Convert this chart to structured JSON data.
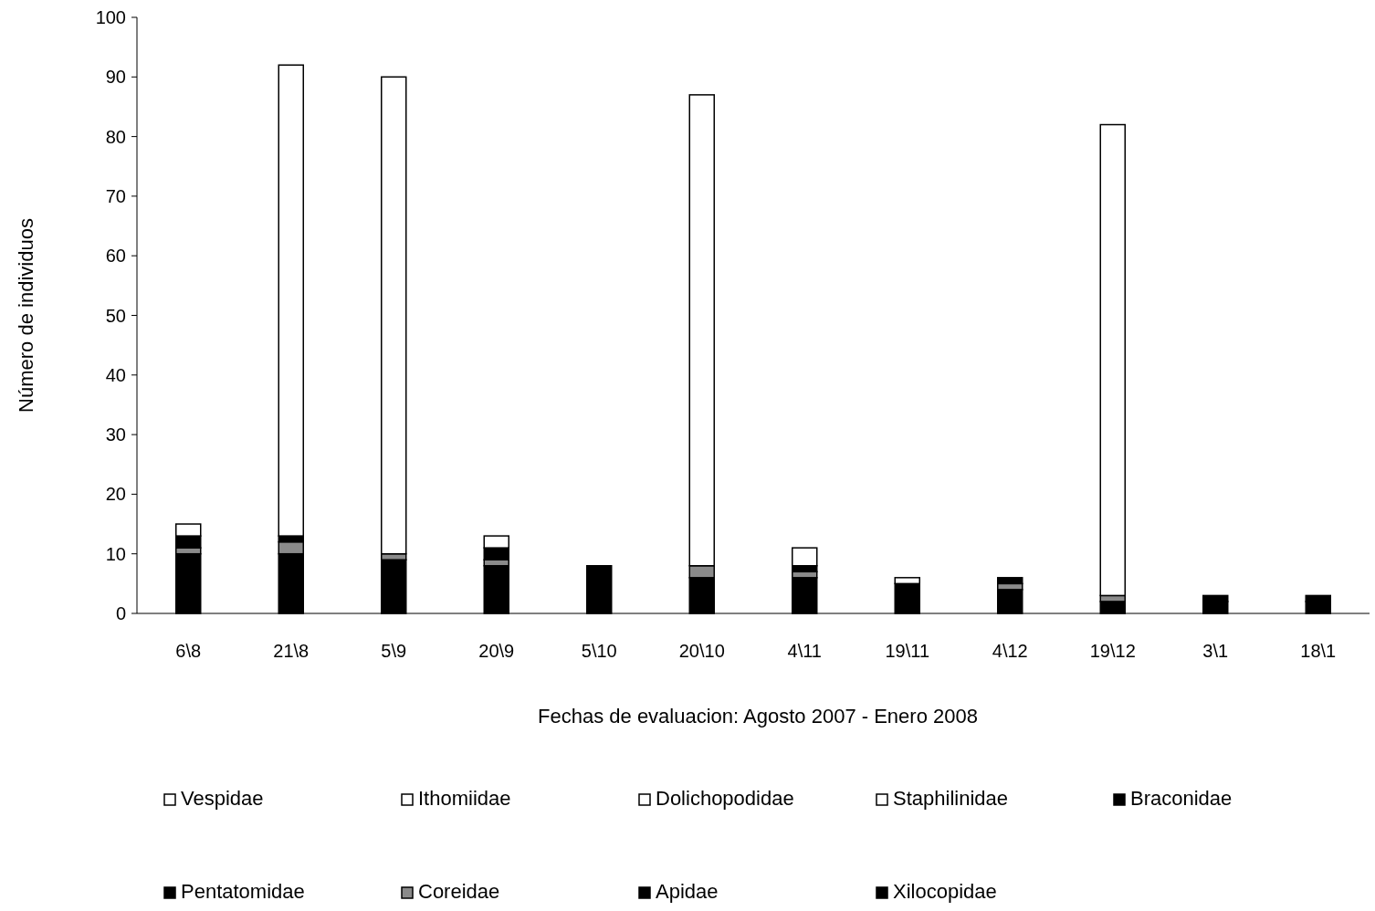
{
  "chart_data": {
    "type": "bar",
    "stacked": true,
    "xlabel": "Fechas de evaluacion: Agosto 2007 - Enero 2008",
    "ylabel": "Número de individuos",
    "categories": [
      "6\\8",
      "21\\8",
      "5\\9",
      "20\\9",
      "5\\10",
      "20\\10",
      "4\\11",
      "19\\11",
      "4\\12",
      "19\\12",
      "3\\1",
      "18\\1"
    ],
    "ylim": [
      0,
      100
    ],
    "yticks": [
      0,
      10,
      20,
      30,
      40,
      50,
      60,
      70,
      80,
      90,
      100
    ],
    "grid": false,
    "legend": "bottom",
    "series": [
      {
        "name": "Xilocopidae",
        "color": "#000000",
        "values": [
          10,
          10,
          9,
          8,
          8,
          6,
          6,
          5,
          4,
          2,
          2,
          2
        ]
      },
      {
        "name": "Apidae",
        "color": "#000000",
        "values": [
          0,
          0,
          0,
          0,
          0,
          0,
          0,
          0,
          0,
          0,
          1,
          1
        ]
      },
      {
        "name": "Coreidae",
        "color": "#8a8a8a",
        "values": [
          1,
          2,
          1,
          1,
          0,
          2,
          1,
          0,
          1,
          1,
          0,
          0
        ]
      },
      {
        "name": "Pentatomidae",
        "color": "#000000",
        "values": [
          2,
          1,
          0,
          2,
          0,
          0,
          1,
          0,
          1,
          0,
          0,
          0
        ]
      },
      {
        "name": "Braconidae",
        "color": "#000000",
        "values": [
          0,
          0,
          0,
          0,
          0,
          0,
          0,
          0,
          0,
          0,
          0,
          0
        ]
      },
      {
        "name": "Staphilinidae",
        "color": "#ffffff",
        "values": [
          0,
          0,
          0,
          0,
          0,
          0,
          0,
          0,
          0,
          0,
          0,
          0
        ]
      },
      {
        "name": "Dolichopodidae",
        "color": "#ffffff",
        "values": [
          0,
          0,
          0,
          0,
          0,
          0,
          0,
          0,
          0,
          0,
          0,
          0
        ]
      },
      {
        "name": "Ithomiidae",
        "color": "#ffffff",
        "values": [
          0,
          0,
          0,
          0,
          0,
          0,
          0,
          0,
          0,
          0,
          0,
          0
        ]
      },
      {
        "name": "Vespidae",
        "color": "#ffffff",
        "values": [
          2,
          79,
          80,
          2,
          0,
          79,
          3,
          1,
          0,
          79,
          0,
          0
        ]
      }
    ]
  }
}
